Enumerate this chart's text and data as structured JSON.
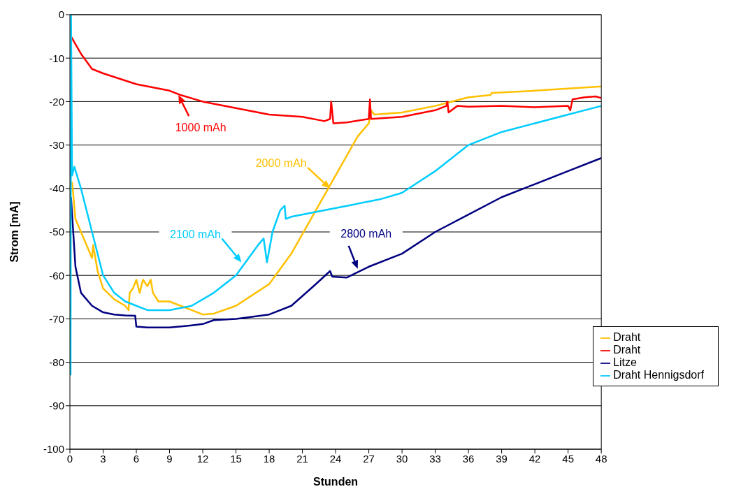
{
  "chart_data": {
    "type": "line",
    "xlabel": "Stunden",
    "ylabel": "Strom [mA]",
    "xlim": [
      0,
      48
    ],
    "ylim": [
      -100,
      0
    ],
    "xticks": [
      0,
      3,
      6,
      9,
      12,
      15,
      18,
      21,
      24,
      27,
      30,
      33,
      36,
      39,
      42,
      45,
      48
    ],
    "yticks": [
      -100,
      -90,
      -80,
      -70,
      -60,
      -50,
      -40,
      -30,
      -20,
      -10,
      0
    ],
    "grid": "y",
    "legend": "bottom right",
    "marker": "none",
    "line_style": "solid",
    "annotations": [
      {
        "text": "1000 mAh",
        "x": 9.8,
        "y": -18.5
      },
      {
        "text": "2000 mAh",
        "x": 23.5,
        "y": -40
      },
      {
        "text": "2100 mAh",
        "x": 15.5,
        "y": -57
      },
      {
        "text": "2800 mAh",
        "x": 26,
        "y": -58.5
      }
    ],
    "series": [
      {
        "name": "Draht",
        "color": "#ffc000",
        "x": [
          0.2,
          0.5,
          1,
          1.5,
          2,
          2.1,
          2.5,
          3,
          4,
          5,
          5.3,
          5.4,
          5.7,
          6,
          6.3,
          6.6,
          7,
          7.3,
          7.5,
          8,
          9,
          10,
          11,
          12,
          13,
          15,
          18,
          20,
          22,
          24,
          26,
          27,
          27.2,
          27.5,
          30,
          33,
          36,
          38,
          38.1,
          42,
          48
        ],
        "values": [
          -38.5,
          -47,
          -50,
          -53,
          -56,
          -53,
          -59,
          -63,
          -65.5,
          -67,
          -68,
          -64,
          -63,
          -61,
          -64,
          -61,
          -62.5,
          -61,
          -64,
          -66,
          -66,
          -67,
          -68,
          -69,
          -68.8,
          -67,
          -62,
          -55,
          -46,
          -37,
          -28,
          -25,
          -22,
          -23,
          -22.5,
          -21,
          -19,
          -18.5,
          -18,
          -17.5,
          -16.5
        ]
      },
      {
        "name": "Draht",
        "color": "#ff0000",
        "x": [
          0.1,
          1,
          2,
          3,
          6,
          9,
          10,
          12,
          15,
          18,
          21,
          23,
          23.5,
          23.6,
          23.8,
          25,
          27,
          27.1,
          27.2,
          30,
          33,
          34,
          34.1,
          34.2,
          35,
          36,
          39,
          42,
          45,
          45.2,
          45.4,
          46.5,
          47.5,
          48
        ],
        "values": [
          -5,
          -9,
          -12.5,
          -13.5,
          -16,
          -17.5,
          -18.5,
          -20,
          -21.5,
          -23,
          -23.5,
          -24.5,
          -24,
          -20,
          -25,
          -24.8,
          -24,
          -19.5,
          -24,
          -23.5,
          -22,
          -21,
          -20,
          -22.5,
          -21,
          -21.2,
          -21,
          -21.3,
          -21,
          -22,
          -19.5,
          -19,
          -18.8,
          -19.2
        ]
      },
      {
        "name": "Litze",
        "color": "#000080",
        "x": [
          0.1,
          0.5,
          1,
          2,
          3,
          4,
          5,
          5.9,
          6,
          7,
          9,
          11,
          12,
          13,
          15,
          18,
          20,
          22,
          23.5,
          23.7,
          25,
          27,
          30,
          33,
          36,
          39,
          42,
          45,
          48
        ],
        "values": [
          -42,
          -58,
          -64,
          -67,
          -68.5,
          -69,
          -69.2,
          -69.3,
          -71.8,
          -72,
          -72,
          -71.5,
          -71.2,
          -70.3,
          -70,
          -69,
          -67,
          -62.5,
          -59,
          -60.3,
          -60.5,
          -58,
          -55,
          -50,
          -46,
          -42,
          -39,
          -36,
          -33
        ]
      },
      {
        "name": "Draht Hennigsdorf",
        "color": "#00ccff",
        "x": [
          0.06,
          0.1,
          0.2,
          0.4,
          1,
          2,
          3,
          4,
          5,
          6,
          7,
          9,
          11,
          13,
          15,
          17,
          17.5,
          17.8,
          18.3,
          19,
          19.4,
          19.5,
          20,
          22,
          25,
          28,
          30,
          33,
          36,
          39,
          42,
          45,
          48
        ],
        "values": [
          -83,
          0,
          -37,
          -35,
          -40,
          -50,
          -60,
          -64,
          -66,
          -67,
          -68,
          -68,
          -67,
          -64,
          -60,
          -53,
          -51.5,
          -57,
          -50,
          -45,
          -44,
          -47,
          -46.5,
          -45.5,
          -44,
          -42.5,
          -41,
          -36,
          -30,
          -27,
          -25,
          -23,
          -21
        ]
      }
    ]
  }
}
